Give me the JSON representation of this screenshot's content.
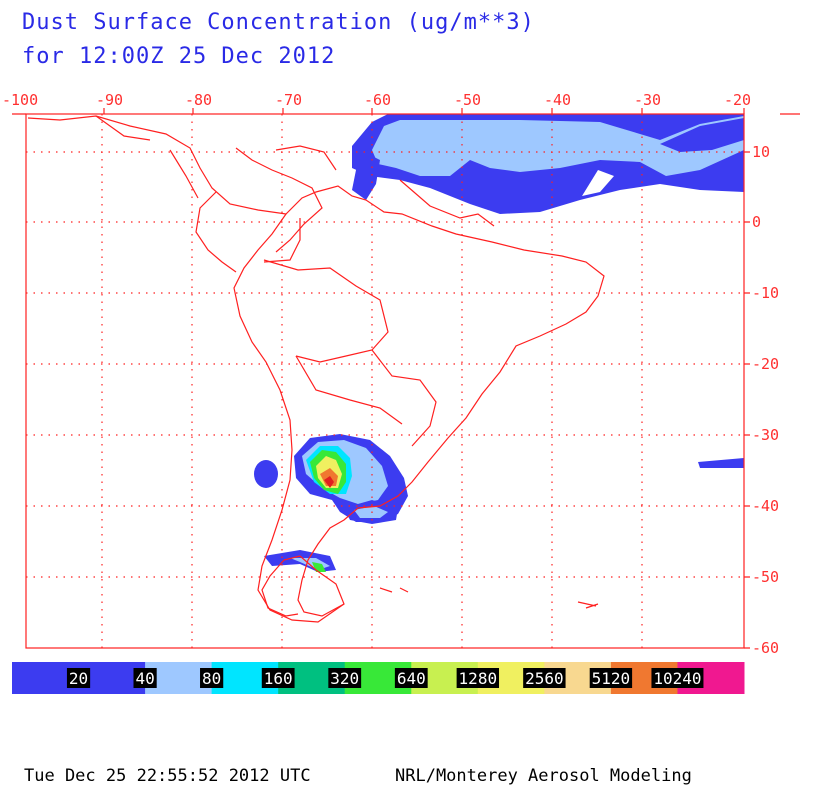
{
  "title": {
    "line1": "Dust Surface Concentration (ug/m**3)",
    "line2": "for 12:00Z 25 Dec 2012"
  },
  "axes": {
    "lon_ticks": [
      "-100",
      "-90",
      "-80",
      "-70",
      "-60",
      "-50",
      "-40",
      "-30",
      "-20"
    ],
    "lat_ticks": [
      "10",
      "0",
      "-10",
      "-20",
      "-30",
      "-40",
      "-50",
      "-60"
    ]
  },
  "legend": {
    "labels": [
      "20",
      "40",
      "80",
      "160",
      "320",
      "640",
      "1280",
      "2560",
      "5120",
      "10240"
    ],
    "colors": [
      "#3c3cf0",
      "#3c3cf0",
      "#9ec8ff",
      "#00e5ff",
      "#00c080",
      "#38e838",
      "#c8f050",
      "#f0f060",
      "#f8d890",
      "#f07830",
      "#f01890"
    ]
  },
  "dust_colors": {
    "light": "#9ec8ff",
    "blue": "#3c3cf0",
    "cyan": "#00e5ff",
    "green": "#38e838",
    "yellow": "#f0f060",
    "orange": "#f07830",
    "red": "#e02020"
  },
  "footer": {
    "timestamp": "Tue Dec 25 22:55:52 2012 UTC",
    "credit": "NRL/Monterey Aerosol Modeling"
  }
}
